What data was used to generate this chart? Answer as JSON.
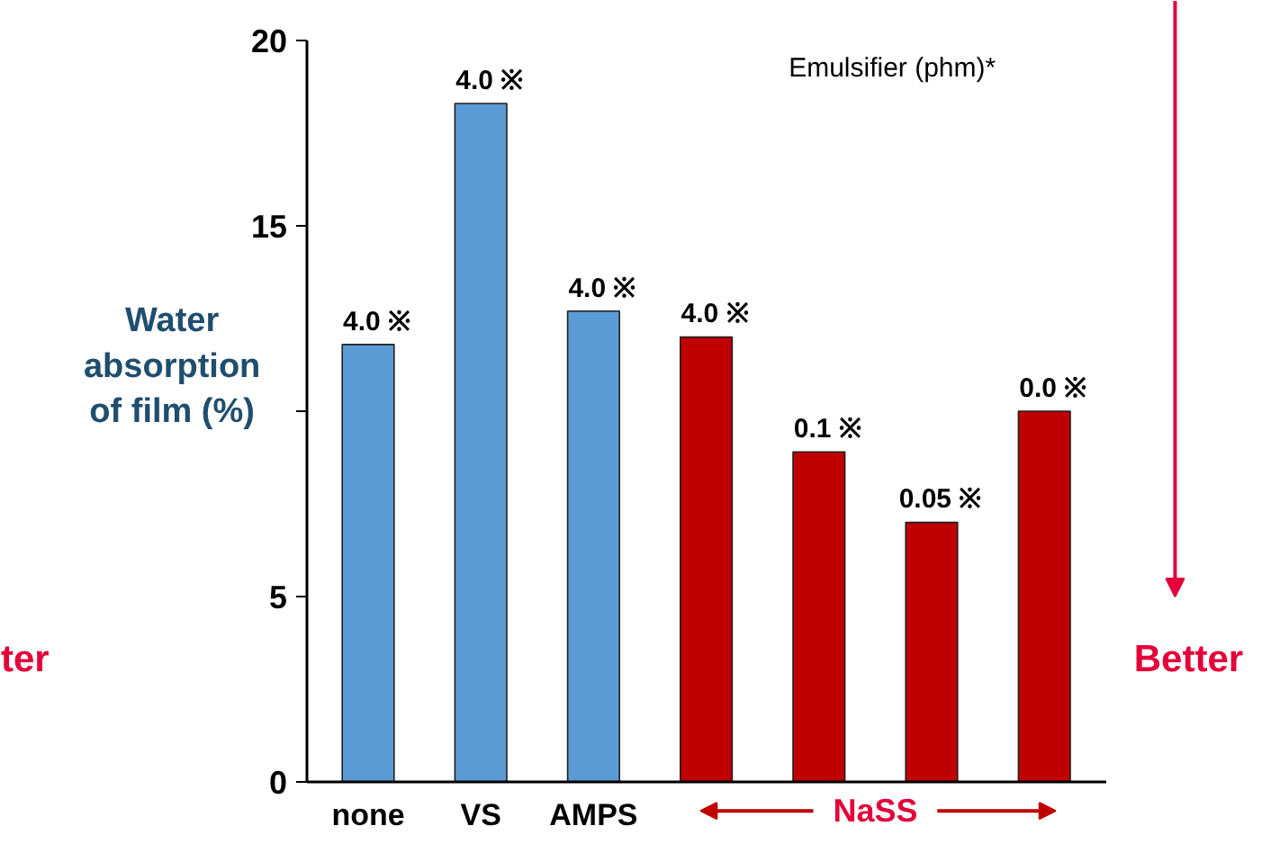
{
  "chart_data": {
    "type": "bar",
    "ylabel": "Water\nabsorption\nof film (%)",
    "categories": [
      "none",
      "VS",
      "AMPS",
      null,
      null,
      null,
      null
    ],
    "values": [
      11.8,
      18.3,
      12.7,
      12.0,
      8.9,
      7.0,
      10.0
    ],
    "colors": [
      "#5b9bd5",
      "#5b9bd5",
      "#5b9bd5",
      "#c00000",
      "#c00000",
      "#c00000",
      "#c00000"
    ],
    "ylim": [
      0,
      20
    ],
    "yticks": [
      0,
      5,
      {
        "value": 10,
        "label": null
      },
      15,
      20
    ],
    "grid": false,
    "annotations": [
      "4.0 ※",
      "4.0 ※",
      "4.0 ※",
      "4.0 ※",
      "0.1 ※",
      "0.05 ※",
      "0.0 ※",
      "Emulsifier (phm)*",
      "NaSS",
      "Better",
      "ter"
    ]
  }
}
